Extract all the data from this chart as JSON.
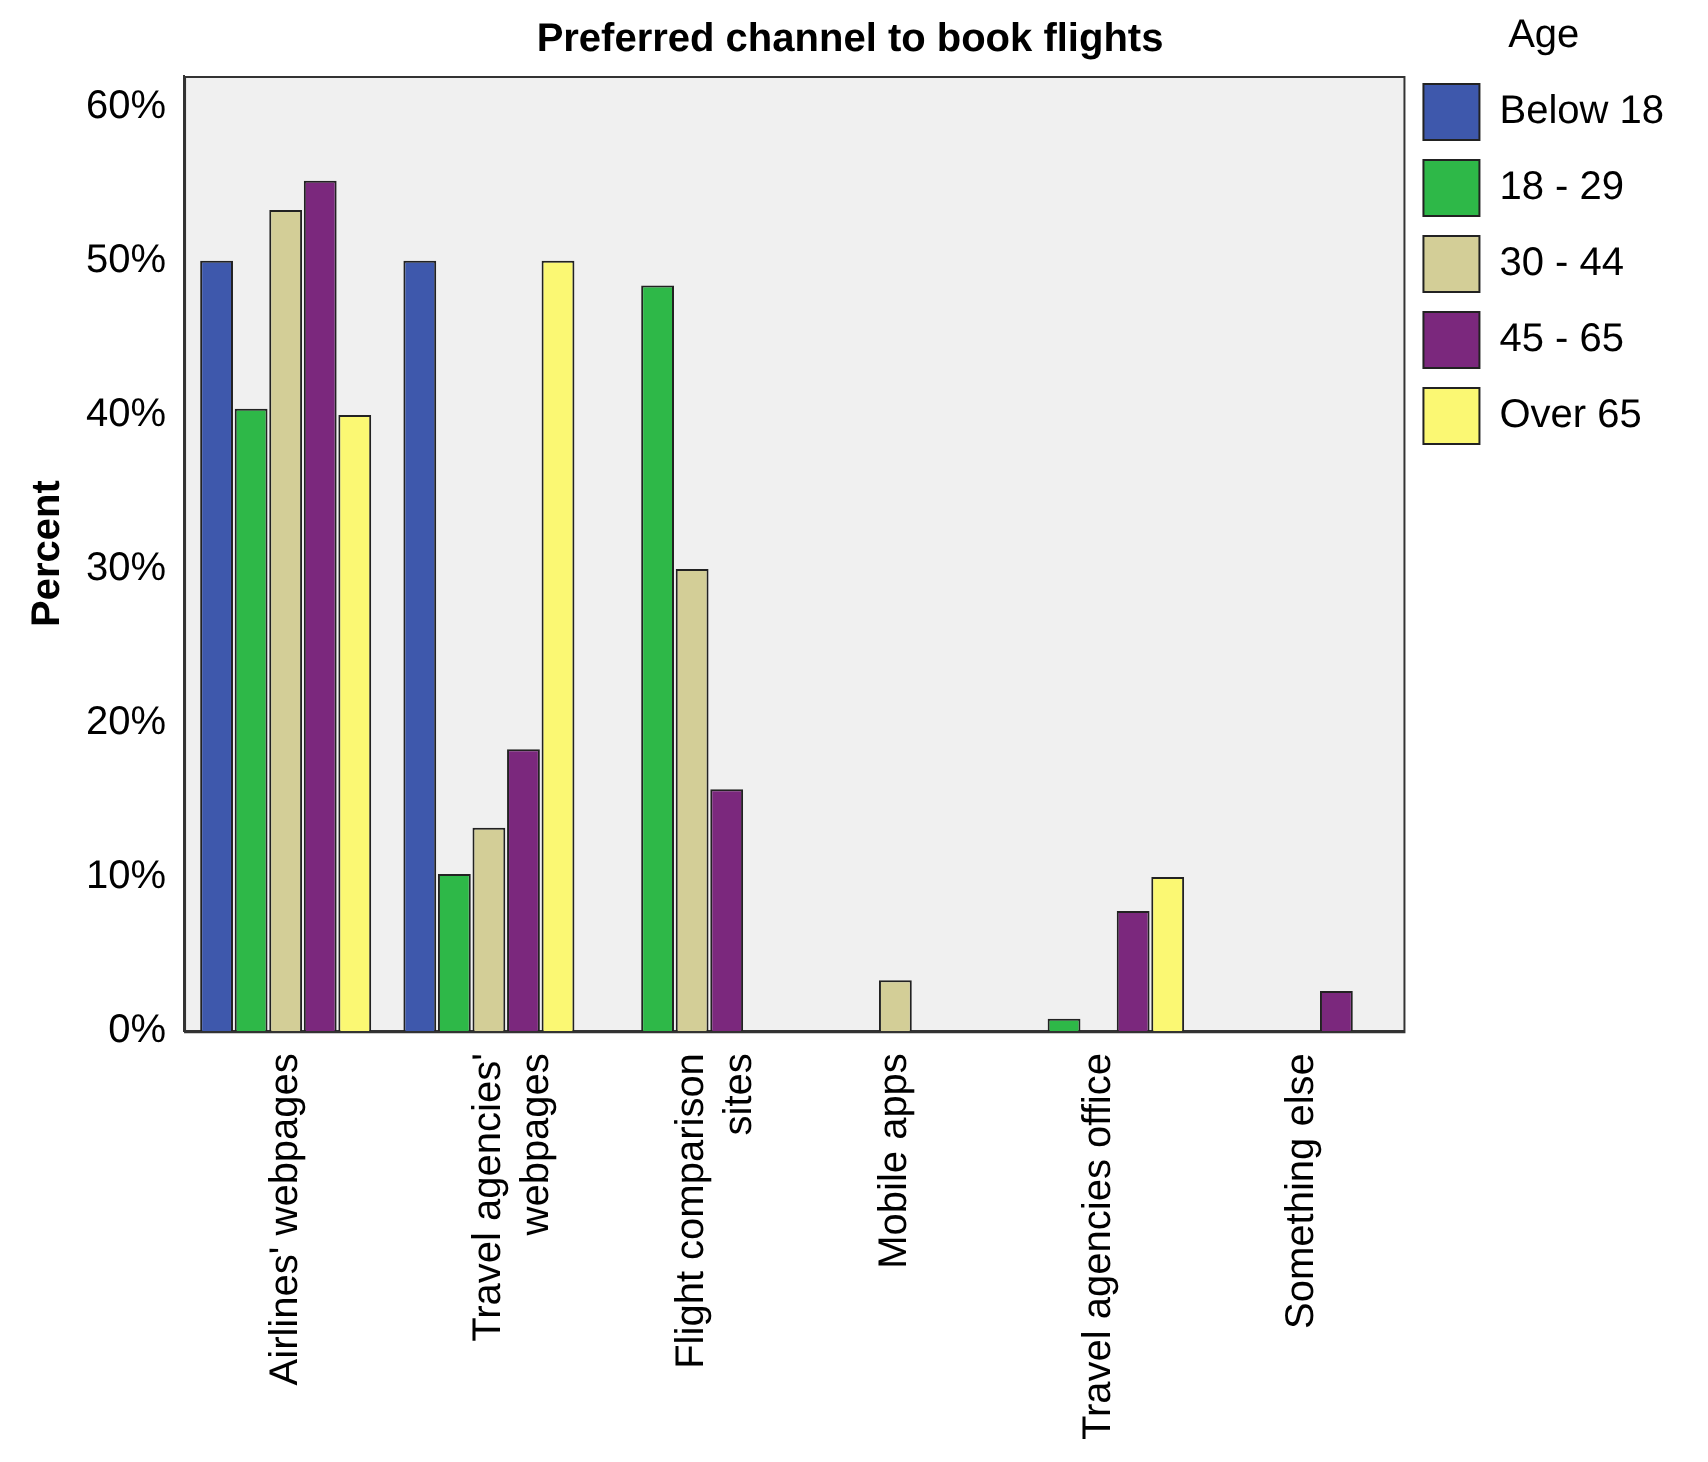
{
  "chart_data": {
    "type": "bar",
    "title": "Preferred channel to book flights",
    "ylabel": "Percent",
    "legend_title": "Age",
    "legend": "right",
    "categories": [
      "Airlines' webpages",
      "Travel agencies' webpages",
      "Flight comparison sites",
      "Mobile apps",
      "Travel agencies office",
      "Something else"
    ],
    "series": [
      {
        "name": "Below 18",
        "color": "#3e58ac",
        "values": [
          50,
          50,
          0,
          0,
          0,
          0
        ]
      },
      {
        "name": "18 - 29",
        "color": "#2eb848",
        "values": [
          40.4,
          10.2,
          48.4,
          0,
          0.8,
          0
        ]
      },
      {
        "name": "30 - 44",
        "color": "#d3ce97",
        "values": [
          53.3,
          13.2,
          30,
          3.3,
          0,
          0
        ]
      },
      {
        "name": "45 - 65",
        "color": "#7b287d",
        "values": [
          55.2,
          18.3,
          15.7,
          0,
          7.8,
          2.6
        ]
      },
      {
        "name": "Over 65",
        "color": "#fbf873",
        "values": [
          40,
          50,
          0,
          0,
          10,
          0
        ]
      }
    ],
    "ylim": [
      0,
      62
    ],
    "yticks": [
      {
        "value": 0,
        "label": "0%"
      },
      {
        "value": 10,
        "label": "10%"
      },
      {
        "value": 20,
        "label": "20%"
      },
      {
        "value": 30,
        "label": "30%"
      },
      {
        "value": 40,
        "label": "40%"
      },
      {
        "value": 50,
        "label": "50%"
      },
      {
        "value": 60,
        "label": "60%"
      }
    ],
    "grid": false
  }
}
